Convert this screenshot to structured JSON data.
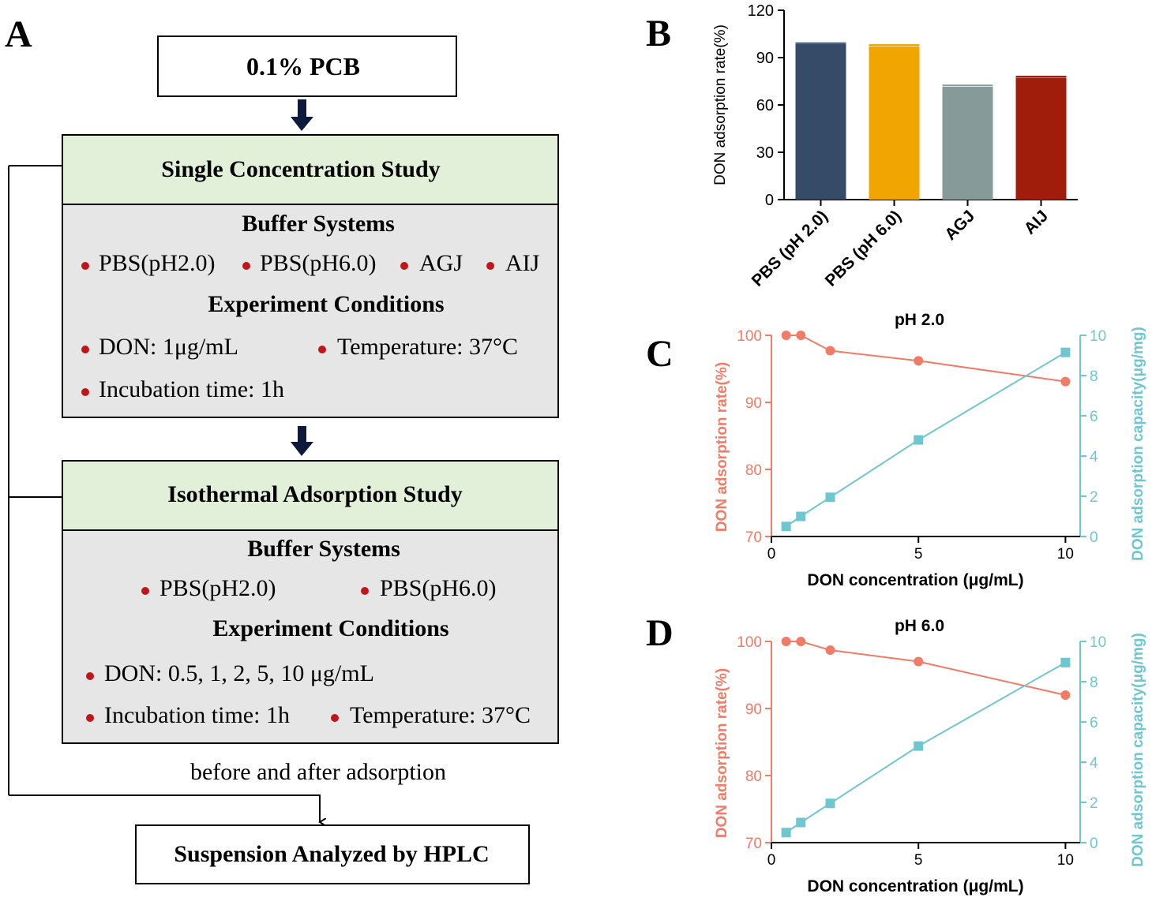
{
  "panel_a": {
    "letter": "A",
    "top_box": "0.1% PCB",
    "single": {
      "title": "Single Concentration Study",
      "buffer_heading": "Buffer Systems",
      "buffers": [
        "PBS(pH2.0)",
        "PBS(pH6.0)",
        "AGJ",
        "AIJ"
      ],
      "conditions_heading": "Experiment Conditions",
      "conditions": [
        "DON: 1μg/mL",
        "Temperature: 37°C",
        "Incubation time: 1h"
      ]
    },
    "isothermal": {
      "title": "Isothermal Adsorption Study",
      "buffer_heading": "Buffer Systems",
      "buffers": [
        "PBS(pH2.0)",
        "PBS(pH6.0)"
      ],
      "conditions_heading": "Experiment Conditions",
      "conditions": [
        "DON: 0.5, 1, 2, 5, 10 μg/mL",
        "Incubation time: 1h",
        "Temperature: 37°C"
      ]
    },
    "note": "before and after adsorption",
    "bottom_box": "Suspension Analyzed by HPLC",
    "colors": {
      "header_fill": "#e3f0d9",
      "body_fill": "#e6e6e6",
      "bullet": "#c0161a",
      "arrow": "#0d1a3c"
    }
  },
  "panel_b": {
    "letter": "B",
    "chart_data": {
      "type": "bar",
      "title": "",
      "categories": [
        "PBS (pH 2.0)",
        "PBS (pH 6.0)",
        "AGJ",
        "AIJ"
      ],
      "values": [
        98.5,
        97.2,
        71.5,
        77.3
      ],
      "errors": [
        0.6,
        0.8,
        0.9,
        0.7
      ],
      "colors": [
        "#354b68",
        "#f0a500",
        "#879a9a",
        "#a01d0c"
      ],
      "xlabel": "",
      "ylabel": "DON adsorption rate(%)",
      "ylim": [
        0,
        120
      ],
      "yticks": [
        "0",
        "30",
        "60",
        "90",
        "120"
      ]
    }
  },
  "panel_c": {
    "letter": "C",
    "chart_data": {
      "type": "line",
      "title": "pH 2.0",
      "x": [
        0.5,
        1,
        2,
        5,
        10
      ],
      "xlabel": "DON concentration (μg/mL)",
      "xlim": [
        0,
        10.5
      ],
      "xticks": [
        "0",
        "5",
        "10"
      ],
      "series": [
        {
          "name": "DON adsorption rate(%)",
          "axis": "left",
          "marker": "circle",
          "color": "#f07b66",
          "values": [
            100,
            100,
            97.7,
            96.2,
            93.1
          ]
        },
        {
          "name": "DON adsorption capacity(μg/mg)",
          "axis": "right",
          "marker": "square",
          "color": "#6ec6d0",
          "values": [
            0.5,
            1.0,
            1.95,
            4.8,
            9.15
          ]
        }
      ],
      "ylabel_left": "DON adsorption rate(%)",
      "ylim_left": [
        70,
        100
      ],
      "yticks_left": [
        "70",
        "80",
        "90",
        "100"
      ],
      "ylabel_right": "DON adsorption capacity(μg/mg)",
      "ylim_right": [
        0,
        10
      ],
      "yticks_right": [
        "0",
        "2",
        "4",
        "6",
        "8",
        "10"
      ]
    }
  },
  "panel_d": {
    "letter": "D",
    "chart_data": {
      "type": "line",
      "title": "pH 6.0",
      "x": [
        0.5,
        1,
        2,
        5,
        10
      ],
      "xlabel": "DON concentration (μg/mL)",
      "xlim": [
        0,
        10.5
      ],
      "xticks": [
        "0",
        "5",
        "10"
      ],
      "series": [
        {
          "name": "DON adsorption rate(%)",
          "axis": "left",
          "marker": "circle",
          "color": "#f07b66",
          "values": [
            100,
            100,
            98.7,
            97.0,
            92.0
          ]
        },
        {
          "name": "DON adsorption capacity(μg/mg)",
          "axis": "right",
          "marker": "square",
          "color": "#6ec6d0",
          "values": [
            0.5,
            1.0,
            1.95,
            4.8,
            8.95
          ]
        }
      ],
      "ylabel_left": "DON adsorption rate(%)",
      "ylim_left": [
        70,
        100
      ],
      "yticks_left": [
        "70",
        "80",
        "90",
        "100"
      ],
      "ylabel_right": "DON adsorption capacity(μg/mg)",
      "ylim_right": [
        0,
        10
      ],
      "yticks_right": [
        "0",
        "2",
        "4",
        "6",
        "8",
        "10"
      ]
    }
  }
}
